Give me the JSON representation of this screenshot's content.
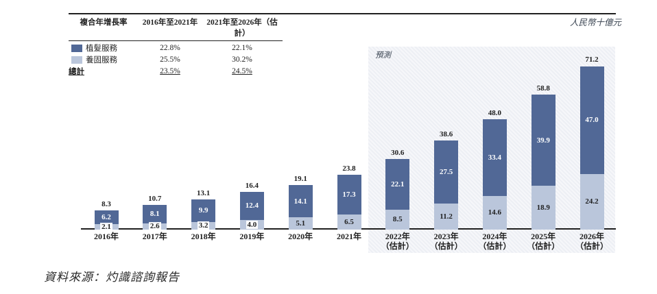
{
  "unit_label": "人民幣十億元",
  "forecast_label": "預測",
  "source_note": "資料來源：灼識諮詢報告",
  "legend_table": {
    "headers": [
      "複合年增長率",
      "2016年至2021年",
      "2021年至2026年（估計）"
    ],
    "rows": [
      {
        "label": "植髮服務",
        "swatch": "dark",
        "values": [
          "22.8%",
          "22.1%"
        ],
        "total": false
      },
      {
        "label": "養固服務",
        "swatch": "light",
        "values": [
          "25.5%",
          "30.2%"
        ],
        "total": false
      },
      {
        "label": "總計",
        "swatch": null,
        "values": [
          "23.5%",
          "24.5%"
        ],
        "total": true
      }
    ]
  },
  "colors": {
    "dark": "#516896",
    "light": "#BAC6DB",
    "forecast_bg": "#EDEFF4",
    "axis": "#1F1F1F"
  },
  "chart_data": {
    "type": "bar",
    "stacked": true,
    "title": "",
    "ylabel": "人民幣十億元",
    "ylim": [
      0,
      79
    ],
    "grid": false,
    "categories": [
      "2016年",
      "2017年",
      "2018年",
      "2019年",
      "2020年",
      "2021年",
      "2022年",
      "2023年",
      "2024年",
      "2025年",
      "2026年"
    ],
    "category_suffix_forecast": "（估計）",
    "forecast_start_index": 6,
    "series": [
      {
        "name": "養固服務",
        "color_key": "light",
        "values": [
          2.1,
          2.6,
          3.2,
          4.0,
          5.1,
          6.5,
          8.5,
          11.2,
          14.6,
          18.9,
          24.2
        ]
      },
      {
        "name": "植髮服務",
        "color_key": "dark",
        "values": [
          6.2,
          8.1,
          9.9,
          12.4,
          14.1,
          17.3,
          22.1,
          27.5,
          33.4,
          39.9,
          47.0
        ]
      }
    ],
    "totals": [
      8.3,
      10.7,
      13.1,
      16.4,
      19.1,
      23.8,
      30.6,
      38.6,
      48.0,
      58.8,
      71.2
    ]
  }
}
